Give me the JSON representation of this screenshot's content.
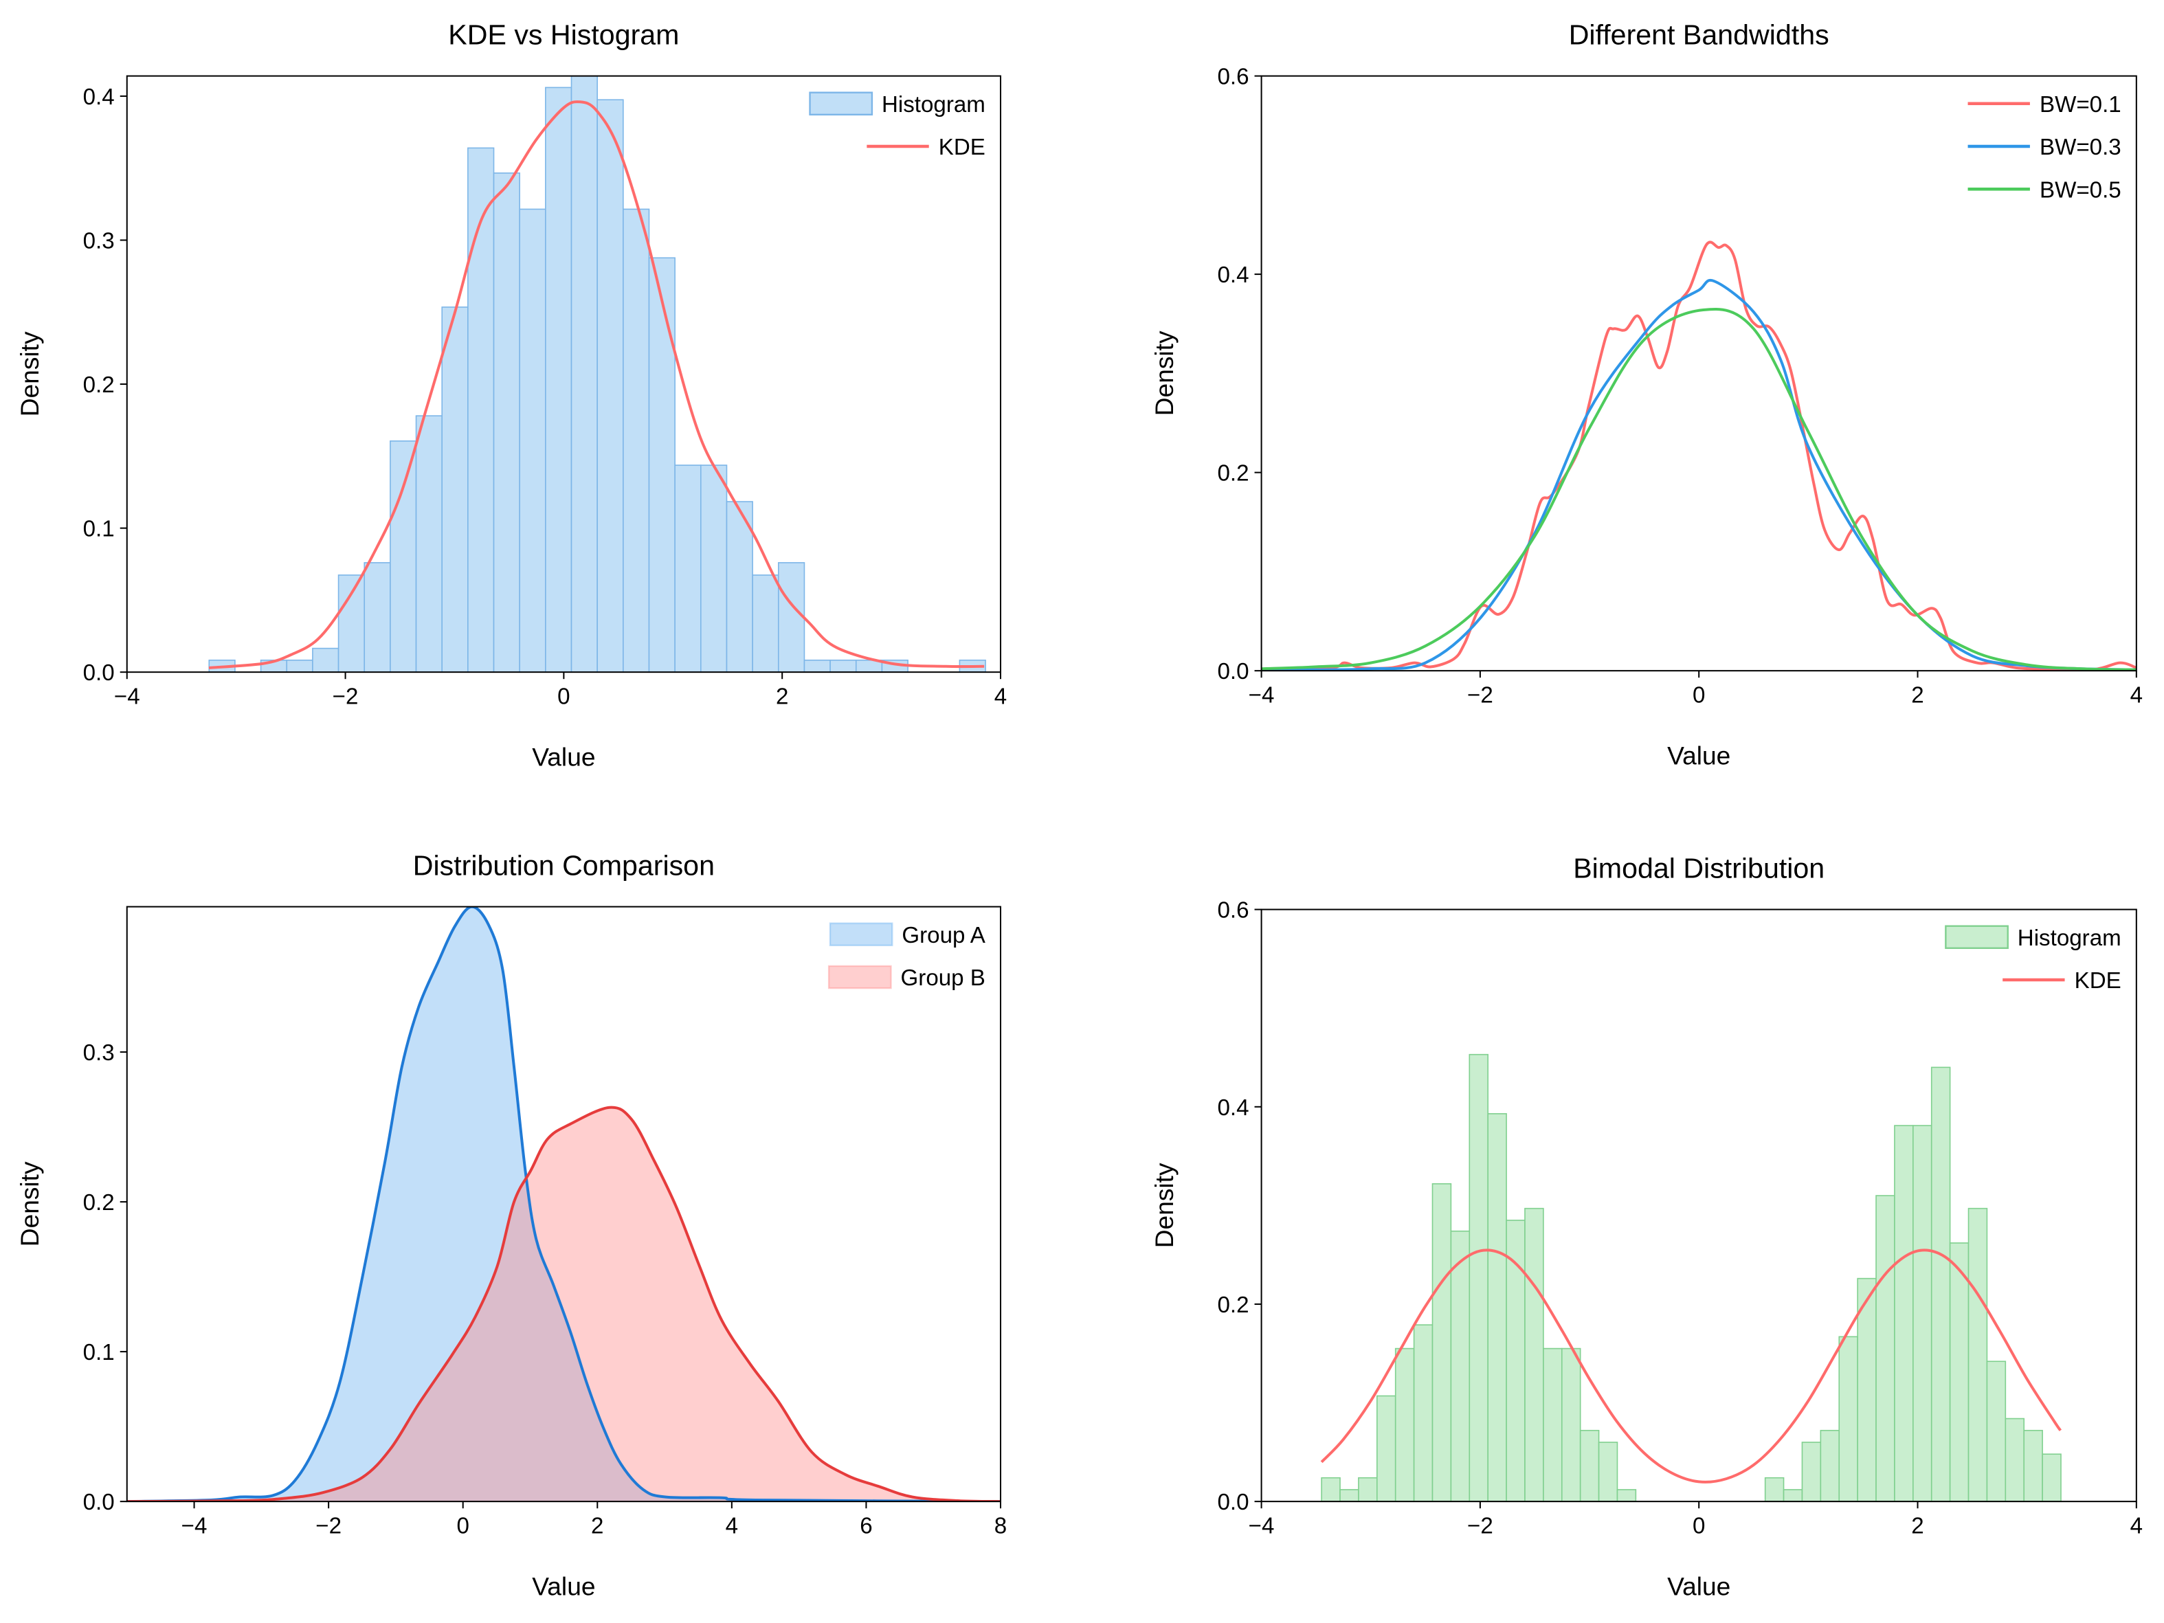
{
  "chart_data": [
    {
      "type": "histogram+line",
      "title": "KDE vs Histogram",
      "xlabel": "Value",
      "ylabel": "Density",
      "xlim": [
        -4,
        4
      ],
      "ylim": [
        0,
        0.414
      ],
      "grid": false,
      "xticks": {
        "values": [
          -4,
          -2,
          0,
          2,
          4
        ],
        "labels": [
          "−4",
          "−2",
          "0",
          "2",
          "4"
        ]
      },
      "yticks": {
        "values": [
          0,
          0.1,
          0.2,
          0.3,
          0.4
        ],
        "labels": [
          "0.0",
          "0.1",
          "0.2",
          "0.3",
          "0.4"
        ]
      },
      "histogram": {
        "name": "Histogram",
        "bin_start": -3.248,
        "bin_width": 0.237,
        "values": [
          0.0083,
          0,
          0.0083,
          0.0083,
          0.0165,
          0.0674,
          0.076,
          0.1605,
          0.178,
          0.2535,
          0.364,
          0.3466,
          0.3215,
          0.406,
          0.4145,
          0.3975,
          0.3215,
          0.2877,
          0.1437,
          0.1437,
          0.1184,
          0.0674,
          0.076,
          0.0083,
          0.0083,
          0.0083,
          0.0083,
          0,
          0,
          0.0083
        ],
        "fill": "#c1dff7",
        "edge": "#7db6e8"
      },
      "series": [
        {
          "name": "KDE",
          "color": "#ff6b6b",
          "fill": null,
          "x": [
            -3.25,
            -2.75,
            -2.5,
            -2.25,
            -2.0,
            -1.75,
            -1.5,
            -1.25,
            -1.0,
            -0.75,
            -0.5,
            -0.25,
            0.0,
            0.15,
            0.3,
            0.5,
            0.75,
            1.0,
            1.25,
            1.5,
            1.75,
            2.0,
            2.25,
            2.5,
            3.0,
            3.5,
            3.85
          ],
          "y": [
            0.003,
            0.006,
            0.012,
            0.023,
            0.048,
            0.081,
            0.122,
            0.185,
            0.249,
            0.315,
            0.34,
            0.37,
            0.392,
            0.396,
            0.39,
            0.364,
            0.304,
            0.227,
            0.163,
            0.127,
            0.094,
            0.056,
            0.034,
            0.017,
            0.006,
            0.004,
            0.004
          ]
        }
      ],
      "legend": {
        "position": "top-right",
        "entries": [
          {
            "label": "Histogram",
            "kind": "patch"
          },
          {
            "label": "KDE",
            "kind": "line"
          }
        ]
      }
    },
    {
      "type": "line",
      "title": "Different Bandwidths",
      "xlabel": "Value",
      "ylabel": "Density",
      "xlim": [
        -4,
        4
      ],
      "ylim": [
        0,
        0.6
      ],
      "grid": false,
      "xticks": {
        "values": [
          -4,
          -2,
          0,
          2,
          4
        ],
        "labels": [
          "−4",
          "−2",
          "0",
          "2",
          "4"
        ]
      },
      "yticks": {
        "values": [
          0,
          0.2,
          0.4,
          0.6
        ],
        "labels": [
          "0.0",
          "0.2",
          "0.4",
          "0.6"
        ]
      },
      "series": [
        {
          "name": "BW=0.1",
          "color": "#ff6b6b",
          "fill": null,
          "x": [
            -4.0,
            -3.37,
            -3.24,
            -3.09,
            -2.81,
            -2.6,
            -2.45,
            -2.24,
            -2.14,
            -1.99,
            -1.83,
            -1.7,
            -1.57,
            -1.45,
            -1.34,
            -1.11,
            -1.01,
            -0.85,
            -0.78,
            -0.67,
            -0.56,
            -0.47,
            -0.37,
            -0.29,
            -0.19,
            -0.08,
            0.07,
            0.18,
            0.25,
            0.33,
            0.43,
            0.53,
            0.64,
            0.74,
            0.84,
            0.95,
            1.05,
            1.15,
            1.28,
            1.38,
            1.5,
            1.59,
            1.72,
            1.85,
            1.97,
            2.13,
            2.21,
            2.33,
            2.54,
            2.69,
            2.9,
            3.21,
            3.62,
            3.85,
            4.0
          ],
          "y": [
            0.001,
            0.003,
            0.008,
            0.003,
            0.003,
            0.008,
            0.004,
            0.012,
            0.028,
            0.065,
            0.057,
            0.074,
            0.121,
            0.17,
            0.178,
            0.22,
            0.266,
            0.337,
            0.345,
            0.344,
            0.358,
            0.337,
            0.306,
            0.322,
            0.368,
            0.387,
            0.43,
            0.427,
            0.429,
            0.415,
            0.365,
            0.348,
            0.347,
            0.331,
            0.303,
            0.245,
            0.189,
            0.142,
            0.122,
            0.139,
            0.156,
            0.133,
            0.071,
            0.067,
            0.056,
            0.063,
            0.053,
            0.019,
            0.008,
            0.008,
            0.003,
            0.0015,
            0.0015,
            0.008,
            0.003
          ]
        },
        {
          "name": "BW=0.3",
          "color": "#2e96e8",
          "fill": null,
          "x": [
            -4.0,
            -3.5,
            -3.0,
            -2.5,
            -2.0,
            -1.5,
            -1.0,
            -0.5,
            -0.25,
            0.0,
            0.14,
            0.5,
            0.75,
            1.0,
            1.5,
            2.0,
            2.5,
            3.0,
            3.5,
            4.0
          ],
          "y": [
            0.001,
            0.001,
            0.002,
            0.008,
            0.053,
            0.139,
            0.263,
            0.34,
            0.368,
            0.384,
            0.393,
            0.362,
            0.313,
            0.226,
            0.127,
            0.056,
            0.015,
            0.005,
            0.002,
            0.001
          ]
        },
        {
          "name": "BW=0.5",
          "color": "#4ccb5c",
          "fill": null,
          "x": [
            -4.0,
            -3.5,
            -3.0,
            -2.5,
            -2.0,
            -1.5,
            -1.0,
            -0.5,
            0.04,
            0.5,
            1.0,
            1.5,
            2.0,
            2.5,
            3.0,
            3.5,
            4.0
          ],
          "y": [
            0.002,
            0.004,
            0.008,
            0.025,
            0.065,
            0.136,
            0.245,
            0.334,
            0.364,
            0.345,
            0.241,
            0.133,
            0.056,
            0.02,
            0.006,
            0.002,
            0.001
          ]
        }
      ],
      "legend": {
        "position": "top-right",
        "entries": [
          {
            "label": "BW=0.1",
            "kind": "line"
          },
          {
            "label": "BW=0.3",
            "kind": "line"
          },
          {
            "label": "BW=0.5",
            "kind": "line"
          }
        ]
      }
    },
    {
      "type": "area",
      "title": "Distribution Comparison",
      "xlabel": "Value",
      "ylabel": "Density",
      "xlim": [
        -5,
        8
      ],
      "ylim": [
        0,
        0.397
      ],
      "grid": false,
      "xticks": {
        "values": [
          -4,
          -2,
          0,
          2,
          4,
          6,
          8
        ],
        "labels": [
          "−4",
          "−2",
          "0",
          "2",
          "4",
          "6",
          "8"
        ]
      },
      "yticks": {
        "values": [
          0,
          0.1,
          0.2,
          0.3
        ],
        "labels": [
          "0.0",
          "0.1",
          "0.2",
          "0.3"
        ]
      },
      "series": [
        {
          "name": "Group A",
          "color": "#1f7ad6",
          "fill": "rgba(110,178,240,0.42)",
          "x": [
            -5.0,
            -3.75,
            -3.33,
            -2.83,
            -2.5,
            -2.16,
            -1.83,
            -1.5,
            -1.16,
            -0.91,
            -0.66,
            -0.37,
            -0.12,
            0.13,
            0.38,
            0.59,
            0.76,
            0.93,
            1.09,
            1.35,
            1.6,
            1.85,
            2.1,
            2.35,
            2.68,
            3.02,
            3.85,
            4.35,
            8.0
          ],
          "y": [
            0,
            0.001,
            0.003,
            0.004,
            0.014,
            0.04,
            0.08,
            0.149,
            0.227,
            0.29,
            0.33,
            0.36,
            0.384,
            0.397,
            0.385,
            0.355,
            0.29,
            0.22,
            0.175,
            0.144,
            0.113,
            0.078,
            0.048,
            0.025,
            0.008,
            0.003,
            0.0025,
            0.001,
            0
          ]
        },
        {
          "name": "Group B",
          "color": "#e63c3c",
          "fill": "rgba(255,140,140,0.42)",
          "x": [
            -5.0,
            -3.33,
            -2.67,
            -2.08,
            -1.5,
            -1.08,
            -0.66,
            -0.16,
            0.18,
            0.51,
            0.76,
            1.01,
            1.26,
            1.6,
            2.18,
            2.51,
            2.85,
            3.18,
            3.52,
            3.85,
            4.27,
            4.69,
            5.19,
            5.69,
            6.19,
            6.69,
            7.36,
            8.0
          ],
          "y": [
            0,
            0.0005,
            0.002,
            0.006,
            0.016,
            0.035,
            0.065,
            0.098,
            0.123,
            0.157,
            0.2,
            0.221,
            0.242,
            0.252,
            0.263,
            0.255,
            0.227,
            0.196,
            0.157,
            0.121,
            0.092,
            0.067,
            0.033,
            0.018,
            0.01,
            0.003,
            0.0005,
            0
          ]
        }
      ],
      "legend": {
        "position": "top-right",
        "entries": [
          {
            "label": "Group A",
            "kind": "patch"
          },
          {
            "label": "Group B",
            "kind": "patch"
          }
        ]
      }
    },
    {
      "type": "histogram+line",
      "title": "Bimodal Distribution",
      "xlabel": "Value",
      "ylabel": "Density",
      "xlim": [
        -4,
        4
      ],
      "ylim": [
        0,
        0.6
      ],
      "grid": false,
      "xticks": {
        "values": [
          -4,
          -2,
          0,
          2,
          4
        ],
        "labels": [
          "−4",
          "−2",
          "0",
          "2",
          "4"
        ]
      },
      "yticks": {
        "values": [
          0,
          0.2,
          0.4,
          0.6
        ],
        "labels": [
          "0.0",
          "0.2",
          "0.4",
          "0.6"
        ]
      },
      "histogram": {
        "name": "Histogram",
        "bin_start": -3.45,
        "bin_width": 0.169,
        "values": [
          0.024,
          0.012,
          0.024,
          0.107,
          0.155,
          0.179,
          0.322,
          0.274,
          0.453,
          0.393,
          0.285,
          0.297,
          0.155,
          0.155,
          0.072,
          0.06,
          0.012,
          0,
          0,
          0,
          0,
          0,
          0,
          0,
          0.024,
          0.012,
          0.06,
          0.072,
          0.167,
          0.226,
          0.31,
          0.381,
          0.381,
          0.44,
          0.262,
          0.297,
          0.142,
          0.084,
          0.072,
          0.048
        ],
        "fill": "#c9eecf",
        "edge": "#80d08f"
      },
      "series": [
        {
          "name": "KDE",
          "color": "#ff6b6b",
          "fill": null,
          "x": [
            -3.45,
            -3.25,
            -3.0,
            -2.75,
            -2.5,
            -2.25,
            -2.0,
            -1.75,
            -1.5,
            -1.25,
            -1.0,
            -0.75,
            -0.5,
            -0.25,
            0.0,
            0.25,
            0.5,
            0.75,
            1.0,
            1.25,
            1.5,
            1.75,
            2.0,
            2.25,
            2.5,
            2.75,
            3.0,
            3.25,
            3.306
          ],
          "y": [
            0.04,
            0.063,
            0.102,
            0.15,
            0.198,
            0.236,
            0.254,
            0.248,
            0.218,
            0.173,
            0.124,
            0.081,
            0.049,
            0.029,
            0.02,
            0.023,
            0.037,
            0.064,
            0.102,
            0.15,
            0.198,
            0.236,
            0.254,
            0.248,
            0.218,
            0.173,
            0.124,
            0.081,
            0.072
          ]
        }
      ],
      "legend": {
        "position": "top-right",
        "entries": [
          {
            "label": "Histogram",
            "kind": "patch"
          },
          {
            "label": "KDE",
            "kind": "line"
          }
        ]
      }
    }
  ]
}
